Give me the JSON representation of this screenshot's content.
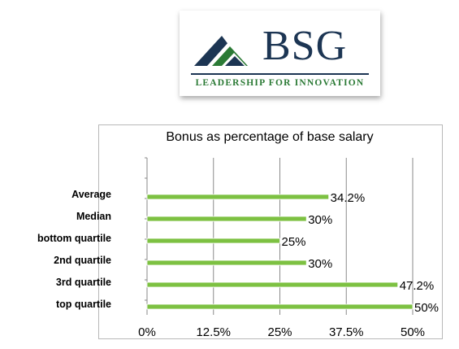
{
  "logo": {
    "wordmark": "BSG",
    "tagline": "LEADERSHIP FOR INNOVATION",
    "colors": {
      "navy": "#1c3553",
      "green": "#2b7a35"
    }
  },
  "chart_data": {
    "type": "bar",
    "orientation": "horizontal",
    "title": "Bonus as percentage of base salary",
    "categories": [
      "Average",
      "Median",
      "bottom quartile",
      "2nd quartile",
      "3rd quartile",
      "top quartile"
    ],
    "values": [
      34.2,
      30,
      25,
      30,
      47.2,
      50
    ],
    "value_labels": [
      "34.2%",
      "30%",
      "25%",
      "30%",
      "47.2%",
      "50%"
    ],
    "x_ticks": [
      0,
      12.5,
      25,
      37.5,
      50
    ],
    "x_tick_labels": [
      "0%",
      "12.5%",
      "25%",
      "37.5%",
      "50%"
    ],
    "xlim": [
      0,
      50
    ],
    "grid": true,
    "bar_color": "#7dc142",
    "legend": false
  }
}
